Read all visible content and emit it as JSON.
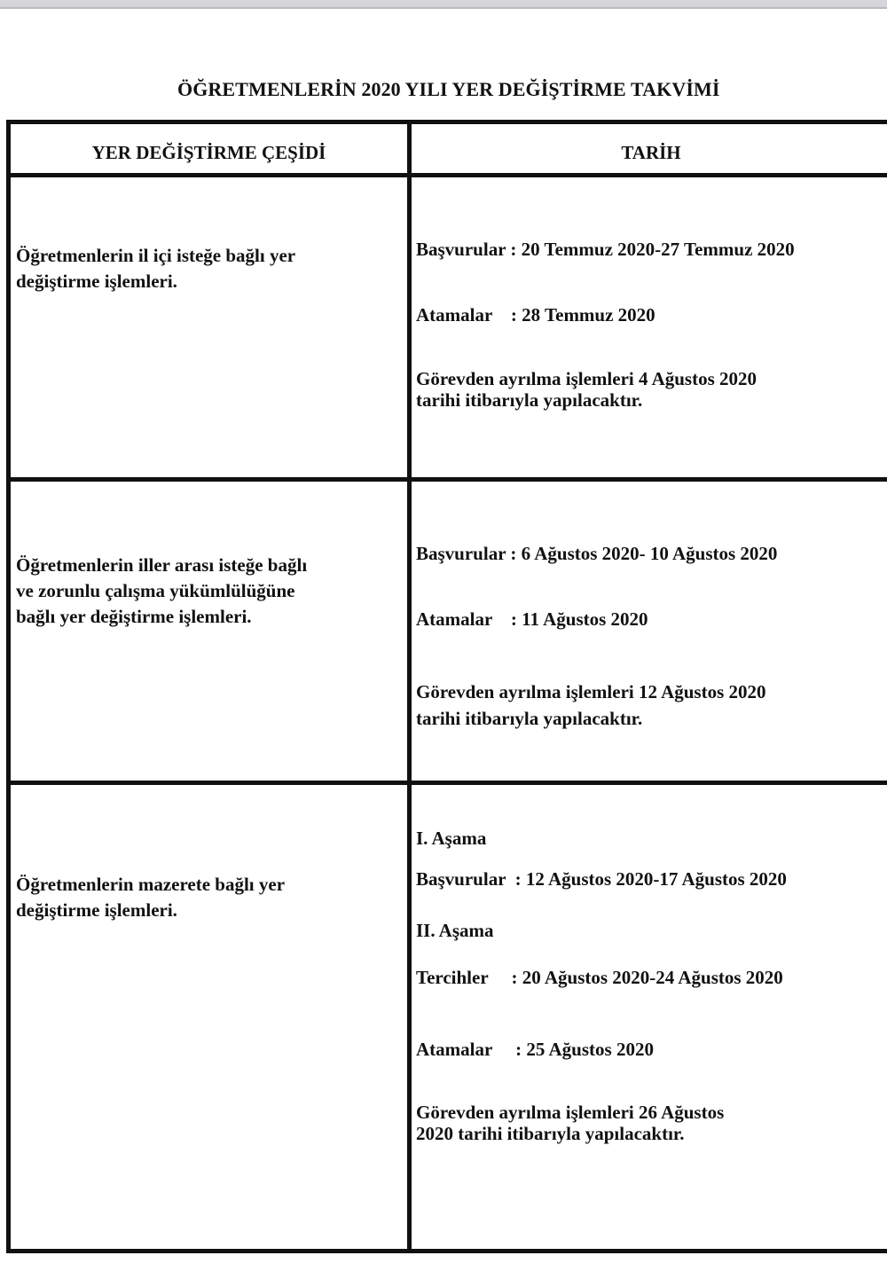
{
  "title": "ÖĞRETMENLERİN 2020 YILI YER DEĞİŞTİRME TAKVİMİ",
  "headers": [
    "YER DEĞİŞTİRME ÇEŞİDİ",
    "TARİH"
  ],
  "rows": [
    {
      "type": [
        "Öğretmenlerin il içi isteğe bağlı yer",
        "değiştirme işlemleri."
      ],
      "dates": [
        "Başvurular : 20 Temmuz 2020-27 Temmuz 2020",
        "Atamalar    : 28 Temmuz 2020",
        "Görevden ayrılma işlemleri 4 Ağustos 2020",
        "tarihi itibarıyla yapılacaktır."
      ]
    },
    {
      "type": [
        "Öğretmenlerin iller arası isteğe bağlı",
        "ve zorunlu çalışma yükümlülüğüne",
        "bağlı yer değiştirme işlemleri."
      ],
      "dates": [
        "Başvurular : 6 Ağustos 2020- 10 Ağustos 2020",
        "Atamalar    : 11 Ağustos 2020",
        "Görevden ayrılma işlemleri 12 Ağustos 2020",
        "tarihi itibarıyla yapılacaktır."
      ]
    },
    {
      "type": [
        "Öğretmenlerin mazerete bağlı yer",
        "değiştirme işlemleri."
      ],
      "dates": [
        "I. Aşama",
        "Başvurular  : 12 Ağustos 2020-17 Ağustos 2020",
        "II. Aşama",
        "Tercihler     : 20 Ağustos 2020-24 Ağustos 2020",
        "Atamalar     : 25 Ağustos 2020",
        "Görevden ayrılma işlemleri 26 Ağustos",
        "2020 tarihi itibarıyla yapılacaktır."
      ]
    }
  ]
}
